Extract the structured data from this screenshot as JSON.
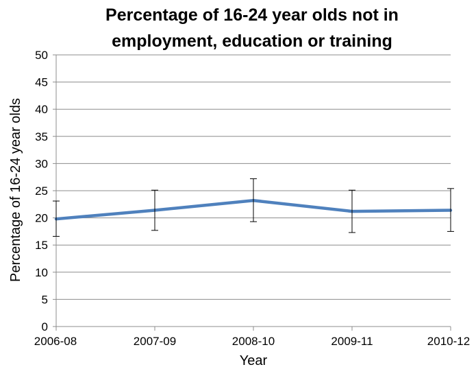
{
  "chart_data": {
    "type": "line",
    "title_lines": [
      "Percentage of 16-24 year olds not in",
      "employment, education or training"
    ],
    "xlabel": "Year",
    "ylabel": "Percentage of 16-24 year olds",
    "categories": [
      "2006-08",
      "2007-09",
      "2008-10",
      "2009-11",
      "2010-12"
    ],
    "ylim": [
      0,
      50
    ],
    "yticks": [
      0,
      5,
      10,
      15,
      20,
      25,
      30,
      35,
      40,
      45,
      50
    ],
    "grid": true,
    "legend": false,
    "series": [
      {
        "values": [
          19.8,
          21.4,
          23.2,
          21.2,
          21.4
        ],
        "error_low": [
          16.6,
          17.7,
          19.3,
          17.3,
          17.5
        ],
        "error_high": [
          23.1,
          25.1,
          27.2,
          25.1,
          25.4
        ],
        "color": "#4f81bd"
      }
    ]
  }
}
